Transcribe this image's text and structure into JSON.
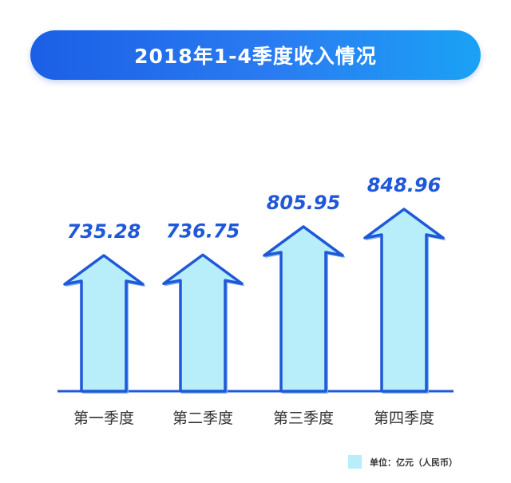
{
  "chart_data": {
    "type": "bar",
    "title": "2018年1-4季度收入情况",
    "categories": [
      "第一季度",
      "第二季度",
      "第三季度",
      "第四季度"
    ],
    "values": [
      735.28,
      736.75,
      805.95,
      848.96
    ],
    "value_labels": [
      "735.28",
      "736.75",
      "805.95",
      "848.96"
    ],
    "unit_label": "单位：亿元（人民币）",
    "legend_position": "bottom-right",
    "grid": false,
    "colors": {
      "bar_fill": "#b8eef9",
      "bar_stroke": "#1f58d8",
      "label": "#1f58d8",
      "title_bg": "#2a7cf2"
    }
  }
}
